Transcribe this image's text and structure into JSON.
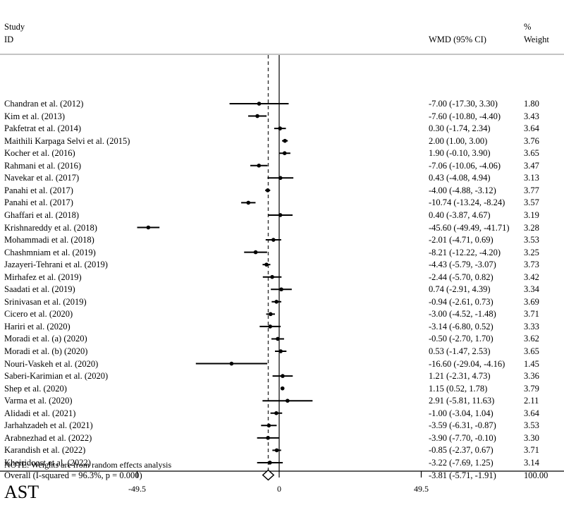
{
  "chart_data": {
    "type": "forest",
    "title": "",
    "panel_label": "AST",
    "headers": {
      "study_line1": "Study",
      "study_line2": "ID",
      "effect": "WMD (95% CI)",
      "weight_line1": "%",
      "weight_line2": "Weight"
    },
    "x_ticks": [
      {
        "value": -49.5,
        "label": "-49.5"
      },
      {
        "value": 0,
        "label": "0"
      },
      {
        "value": 49.5,
        "label": "49.5"
      }
    ],
    "xlim": [
      -49.5,
      49.5
    ],
    "null_line": 0,
    "pooled_line": -3.81,
    "studies": [
      {
        "id": "Chandran et al. (2012)",
        "wmd": -7.0,
        "lo": -17.3,
        "hi": 3.3,
        "ci_text": "-7.00 (-17.30, 3.30)",
        "weight": "1.80"
      },
      {
        "id": "Kim et al. (2013)",
        "wmd": -7.6,
        "lo": -10.8,
        "hi": -4.4,
        "ci_text": "-7.60 (-10.80, -4.40)",
        "weight": "3.43"
      },
      {
        "id": "Pakfetrat et al. (2014)",
        "wmd": 0.3,
        "lo": -1.74,
        "hi": 2.34,
        "ci_text": "0.30 (-1.74, 2.34)",
        "weight": "3.64"
      },
      {
        "id": "Maithili Karpaga Selvi et al. (2015)",
        "wmd": 2.0,
        "lo": 1.0,
        "hi": 3.0,
        "ci_text": "2.00 (1.00, 3.00)",
        "weight": "3.76"
      },
      {
        "id": "Kocher et al. (2016)",
        "wmd": 1.9,
        "lo": -0.1,
        "hi": 3.9,
        "ci_text": "1.90 (-0.10, 3.90)",
        "weight": "3.65"
      },
      {
        "id": "Rahmani et al.  (2016)",
        "wmd": -7.06,
        "lo": -10.06,
        "hi": -4.06,
        "ci_text": "-7.06 (-10.06, -4.06)",
        "weight": "3.47"
      },
      {
        "id": "Navekar et al. (2017)",
        "wmd": 0.43,
        "lo": -4.08,
        "hi": 4.94,
        "ci_text": "0.43 (-4.08, 4.94)",
        "weight": "3.13"
      },
      {
        "id": "Panahi et al. (2017)",
        "wmd": -4.0,
        "lo": -4.88,
        "hi": -3.12,
        "ci_text": "-4.00 (-4.88, -3.12)",
        "weight": "3.77"
      },
      {
        "id": "Panahi et al. (2017)",
        "wmd": -10.74,
        "lo": -13.24,
        "hi": -8.24,
        "ci_text": "-10.74 (-13.24, -8.24)",
        "weight": "3.57"
      },
      {
        "id": "Ghaffari et al. (2018)",
        "wmd": 0.4,
        "lo": -3.87,
        "hi": 4.67,
        "ci_text": "0.40 (-3.87, 4.67)",
        "weight": "3.19"
      },
      {
        "id": "Krishnareddy et al. (2018)",
        "wmd": -45.6,
        "lo": -49.49,
        "hi": -41.71,
        "ci_text": "-45.60 (-49.49, -41.71)",
        "weight": "3.28"
      },
      {
        "id": "Mohammadi et al. (2018)",
        "wmd": -2.01,
        "lo": -4.71,
        "hi": 0.69,
        "ci_text": "-2.01 (-4.71, 0.69)",
        "weight": "3.53"
      },
      {
        "id": "Chashmniam et al. (2019)",
        "wmd": -8.21,
        "lo": -12.22,
        "hi": -4.2,
        "ci_text": "-8.21 (-12.22, -4.20)",
        "weight": "3.25"
      },
      {
        "id": "Jazayeri-Tehrani et al. (2019)",
        "wmd": -4.43,
        "lo": -5.79,
        "hi": -3.07,
        "ci_text": "-4.43 (-5.79, -3.07)",
        "weight": "3.73"
      },
      {
        "id": "Mirhafez et al. (2019)",
        "wmd": -2.44,
        "lo": -5.7,
        "hi": 0.82,
        "ci_text": "-2.44 (-5.70, 0.82)",
        "weight": "3.42"
      },
      {
        "id": "Saadati et al. (2019)",
        "wmd": 0.74,
        "lo": -2.91,
        "hi": 4.39,
        "ci_text": "0.74 (-2.91, 4.39)",
        "weight": "3.34"
      },
      {
        "id": "Srinivasan et al. (2019)",
        "wmd": -0.94,
        "lo": -2.61,
        "hi": 0.73,
        "ci_text": "-0.94 (-2.61, 0.73)",
        "weight": "3.69"
      },
      {
        "id": "Cicero et al. (2020)",
        "wmd": -3.0,
        "lo": -4.52,
        "hi": -1.48,
        "ci_text": "-3.00 (-4.52, -1.48)",
        "weight": "3.71"
      },
      {
        "id": "Hariri et al. (2020)",
        "wmd": -3.14,
        "lo": -6.8,
        "hi": 0.52,
        "ci_text": "-3.14 (-6.80, 0.52)",
        "weight": "3.33"
      },
      {
        "id": "Moradi et al. (a) (2020)",
        "wmd": -0.5,
        "lo": -2.7,
        "hi": 1.7,
        "ci_text": "-0.50 (-2.70, 1.70)",
        "weight": "3.62"
      },
      {
        "id": "Moradi et al. (b) (2020)",
        "wmd": 0.53,
        "lo": -1.47,
        "hi": 2.53,
        "ci_text": "0.53 (-1.47, 2.53)",
        "weight": "3.65"
      },
      {
        "id": "Nouri-Vaskeh et al. (2020)",
        "wmd": -16.6,
        "lo": -29.04,
        "hi": -4.16,
        "ci_text": "-16.60 (-29.04, -4.16)",
        "weight": "1.45"
      },
      {
        "id": "Saberi-Karimian et al. (2020)",
        "wmd": 1.21,
        "lo": -2.31,
        "hi": 4.73,
        "ci_text": "1.21 (-2.31, 4.73)",
        "weight": "3.36"
      },
      {
        "id": "Shep et al. (2020)",
        "wmd": 1.15,
        "lo": 0.52,
        "hi": 1.78,
        "ci_text": "1.15 (0.52, 1.78)",
        "weight": "3.79"
      },
      {
        "id": "Varma et al. (2020)",
        "wmd": 2.91,
        "lo": -5.81,
        "hi": 11.63,
        "ci_text": "2.91 (-5.81, 11.63)",
        "weight": "2.11"
      },
      {
        "id": "Alidadi et al. (2021)",
        "wmd": -1.0,
        "lo": -3.04,
        "hi": 1.04,
        "ci_text": "-1.00 (-3.04, 1.04)",
        "weight": "3.64"
      },
      {
        "id": "Jarhahzadeh et al. (2021)",
        "wmd": -3.59,
        "lo": -6.31,
        "hi": -0.87,
        "ci_text": "-3.59 (-6.31, -0.87)",
        "weight": "3.53"
      },
      {
        "id": "Arabnezhad et al. (2022)",
        "wmd": -3.9,
        "lo": -7.7,
        "hi": -0.1,
        "ci_text": "-3.90 (-7.70, -0.10)",
        "weight": "3.30"
      },
      {
        "id": "Karandish et al. (2022)",
        "wmd": -0.85,
        "lo": -2.37,
        "hi": 0.67,
        "ci_text": "-0.85 (-2.37, 0.67)",
        "weight": "3.71"
      },
      {
        "id": "Kheiridoost et al. (2022)",
        "wmd": -3.22,
        "lo": -7.69,
        "hi": 1.25,
        "ci_text": "-3.22 (-7.69, 1.25)",
        "weight": "3.14"
      }
    ],
    "overall": {
      "label": "Overall  (I-squared = 96.3%, p = 0.000)",
      "wmd": -3.81,
      "lo": -5.71,
      "hi": -1.91,
      "ci_text": "-3.81 (-5.71, -1.91)",
      "weight": "100.00"
    },
    "note": "NOTE: Weights are from random effects analysis"
  }
}
